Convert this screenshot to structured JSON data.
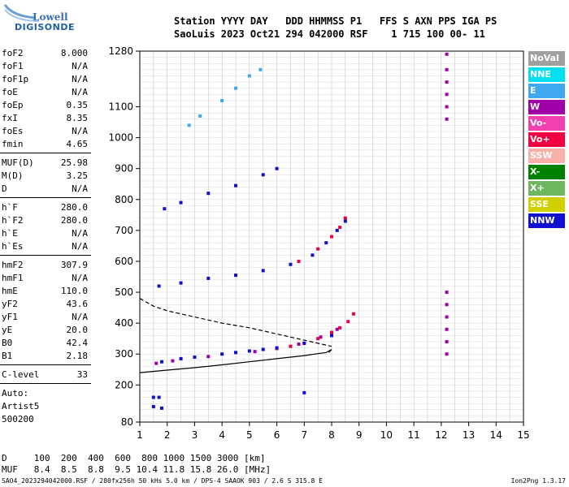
{
  "logo": {
    "top": "Lowell",
    "bottom": "DIGISONDE"
  },
  "header": {
    "line1": "Station YYYY DAY   DDD HHMMSS P1   FFS S AXN PPS IGA PS",
    "line2": "SaoLuis 2023 Oct21 294 042000 RSF    1 715 100 00- 11"
  },
  "params": {
    "group1": [
      {
        "name": "foF2",
        "value": "8.000"
      },
      {
        "name": "foF1",
        "value": "N/A"
      },
      {
        "name": "foF1p",
        "value": "N/A"
      },
      {
        "name": "foE",
        "value": "N/A"
      },
      {
        "name": "foEp",
        "value": "0.35"
      },
      {
        "name": "fxI",
        "value": "8.35"
      },
      {
        "name": "foEs",
        "value": "N/A"
      },
      {
        "name": "fmin",
        "value": "4.65"
      }
    ],
    "group2": [
      {
        "name": "MUF(D)",
        "value": "25.98"
      },
      {
        "name": "M(D)",
        "value": "3.25"
      },
      {
        "name": "D",
        "value": "N/A"
      }
    ],
    "group3": [
      {
        "name": "h`F",
        "value": "280.0"
      },
      {
        "name": "h`F2",
        "value": "280.0"
      },
      {
        "name": "h`E",
        "value": "N/A"
      },
      {
        "name": "h`Es",
        "value": "N/A"
      }
    ],
    "group4": [
      {
        "name": "hmF2",
        "value": "307.9"
      },
      {
        "name": "hmF1",
        "value": "N/A"
      },
      {
        "name": "hmE",
        "value": "110.0"
      },
      {
        "name": "yF2",
        "value": "43.6"
      },
      {
        "name": "yF1",
        "value": "N/A"
      },
      {
        "name": "yE",
        "value": "20.0"
      },
      {
        "name": "B0",
        "value": "42.4"
      },
      {
        "name": "B1",
        "value": "2.18"
      }
    ],
    "group5": [
      {
        "name": "C-level",
        "value": "33"
      }
    ],
    "group6": [
      "Auto:",
      "Artist5",
      "500200"
    ]
  },
  "legend": [
    {
      "label": "NoVal",
      "color": "#a0a0a0"
    },
    {
      "label": "NNE",
      "color": "#00e0f0"
    },
    {
      "label": "E",
      "color": "#40a8f0"
    },
    {
      "label": "W",
      "color": "#a000a8"
    },
    {
      "label": "Vo-",
      "color": "#f040b0"
    },
    {
      "label": "Vo+",
      "color": "#f00040"
    },
    {
      "label": "SSW",
      "color": "#f8b0a8"
    },
    {
      "label": "X-",
      "color": "#008000"
    },
    {
      "label": "X+",
      "color": "#70b860"
    },
    {
      "label": "SSE",
      "color": "#d0d000"
    },
    {
      "label": "NNW",
      "color": "#1010d0"
    }
  ],
  "muf_table": {
    "row1": "D     100  200  400  600  800 1000 1500 3000 [km]",
    "row2": "MUF   8.4  8.5  8.8  9.5 10.4 11.8 15.8 26.0 [MHz]"
  },
  "footer": {
    "left": "SAO4_2023294042000.RSF / 280fx256h 50 kHs 5.0 km / DPS-4 SAAOK 903 / 2.6 S 315.8 E",
    "right": "Ion2Png 1.3.17"
  },
  "chart_data": {
    "type": "scatter",
    "xlim": [
      1,
      15
    ],
    "ylim": [
      80,
      1280
    ],
    "xticks": [
      "1",
      "2",
      "3",
      "4",
      "5",
      "6",
      "7",
      "8",
      "9",
      "10",
      "11",
      "12",
      "13",
      "14",
      "15"
    ],
    "yticks": [
      "80",
      "200",
      "300",
      "400",
      "500",
      "600",
      "700",
      "800",
      "900",
      "1000",
      "1100",
      "1280"
    ],
    "grid": true,
    "series": [
      {
        "color": "#f00040",
        "points": [
          [
            6.0,
            318
          ],
          [
            6.5,
            325
          ],
          [
            7.0,
            335
          ],
          [
            7.5,
            350
          ],
          [
            8.0,
            370
          ],
          [
            8.3,
            385
          ],
          [
            8.6,
            405
          ],
          [
            8.8,
            430
          ]
        ]
      },
      {
        "color": "#1010d0",
        "points": [
          [
            1.8,
            275
          ],
          [
            2.5,
            285
          ],
          [
            3.0,
            290
          ],
          [
            4.0,
            300
          ],
          [
            4.5,
            305
          ],
          [
            5.0,
            310
          ],
          [
            5.5,
            315
          ],
          [
            6.0,
            320
          ],
          [
            7.0,
            335
          ],
          [
            8.0,
            360
          ]
        ]
      },
      {
        "color": "#a000a8",
        "points": [
          [
            1.6,
            270
          ],
          [
            2.2,
            278
          ],
          [
            3.5,
            292
          ],
          [
            5.2,
            308
          ],
          [
            6.8,
            332
          ],
          [
            7.6,
            355
          ],
          [
            8.2,
            380
          ]
        ]
      },
      {
        "color": "#1010d0",
        "points": [
          [
            1.7,
            520
          ],
          [
            2.5,
            530
          ],
          [
            3.5,
            545
          ],
          [
            4.5,
            555
          ],
          [
            5.5,
            570
          ],
          [
            6.5,
            590
          ],
          [
            7.3,
            620
          ],
          [
            7.8,
            660
          ],
          [
            8.2,
            700
          ],
          [
            8.5,
            730
          ]
        ]
      },
      {
        "color": "#f00040",
        "points": [
          [
            6.8,
            600
          ],
          [
            7.5,
            640
          ],
          [
            8.0,
            680
          ],
          [
            8.3,
            710
          ],
          [
            8.5,
            740
          ]
        ]
      },
      {
        "color": "#1010d0",
        "points": [
          [
            1.9,
            770
          ],
          [
            2.5,
            790
          ],
          [
            3.5,
            820
          ],
          [
            4.5,
            845
          ],
          [
            5.5,
            880
          ],
          [
            6.0,
            900
          ]
        ]
      },
      {
        "color": "#40a8f0",
        "points": [
          [
            2.8,
            1040
          ],
          [
            3.2,
            1070
          ],
          [
            4.0,
            1120
          ],
          [
            4.5,
            1160
          ],
          [
            5.0,
            1200
          ],
          [
            5.4,
            1220
          ]
        ]
      },
      {
        "color": "#1010d0",
        "points": [
          [
            1.5,
            160
          ],
          [
            1.7,
            160
          ],
          [
            1.5,
            130
          ],
          [
            1.8,
            125
          ],
          [
            7.0,
            175
          ]
        ]
      },
      {
        "color": "#a000a8",
        "points": [
          [
            12.2,
            1270
          ],
          [
            12.2,
            1220
          ],
          [
            12.2,
            1180
          ],
          [
            12.2,
            1140
          ],
          [
            12.2,
            1100
          ],
          [
            12.2,
            1060
          ],
          [
            12.2,
            500
          ],
          [
            12.2,
            460
          ],
          [
            12.2,
            420
          ],
          [
            12.2,
            380
          ],
          [
            12.2,
            340
          ],
          [
            12.2,
            300
          ]
        ]
      }
    ],
    "profile_curves": [
      {
        "style": "solid",
        "points": [
          [
            1,
            240
          ],
          [
            2,
            248
          ],
          [
            3,
            256
          ],
          [
            4,
            265
          ],
          [
            5,
            275
          ],
          [
            6,
            285
          ],
          [
            7,
            295
          ],
          [
            7.8,
            305
          ],
          [
            8.0,
            315
          ],
          [
            7.9,
            305
          ]
        ]
      },
      {
        "style": "dashed",
        "points": [
          [
            1,
            480
          ],
          [
            1.5,
            455
          ],
          [
            2,
            440
          ],
          [
            3,
            420
          ],
          [
            4,
            400
          ],
          [
            5,
            385
          ],
          [
            6,
            365
          ],
          [
            7,
            345
          ],
          [
            8,
            325
          ]
        ]
      }
    ]
  }
}
